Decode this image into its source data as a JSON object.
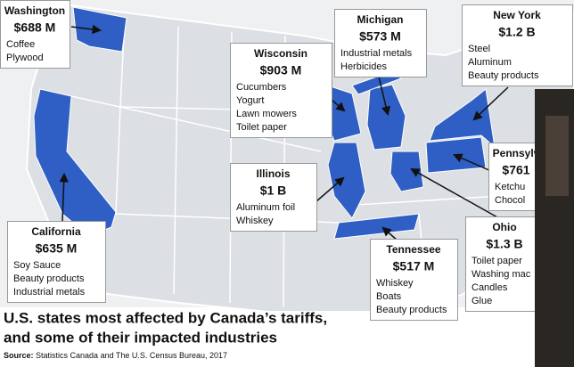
{
  "title_lines": [
    "U.S. states most affected by Canada’s tariffs,",
    "and some of their impacted industries"
  ],
  "source_label": "Source:",
  "source": "Statistics Canada and The U.S. Census Bureau, 2017",
  "callouts": [
    {
      "state": "Washington",
      "amount": "$688 M",
      "items": [
        "Coffee",
        "Plywood"
      ]
    },
    {
      "state": "Michigan",
      "amount": "$573 M",
      "items": [
        "Industrial metals",
        "Herbicides"
      ]
    },
    {
      "state": "New York",
      "amount": "$1.2 B",
      "items": [
        "Steel",
        "Aluminum",
        "Beauty products"
      ]
    },
    {
      "state": "Wisconsin",
      "amount": "$903 M",
      "items": [
        "Cucumbers",
        "Yogurt",
        "Lawn mowers",
        "Toilet paper"
      ]
    },
    {
      "state": "Illinois",
      "amount": "$1 B",
      "items": [
        "Aluminum foil",
        "Whiskey"
      ]
    },
    {
      "state": "California",
      "amount": "$635 M",
      "items": [
        "Soy Sauce",
        "Beauty products",
        "Industrial metals"
      ]
    },
    {
      "state": "Tennessee",
      "amount": "$517 M",
      "items": [
        "Whiskey",
        "Boats",
        "Beauty products"
      ]
    },
    {
      "state": "Ohio",
      "amount": "$1.3 B",
      "items": [
        "Toilet paper",
        "Washing mac",
        "Candles",
        "Glue"
      ]
    },
    {
      "state": "Pennsylv",
      "amount": "$761",
      "items": [
        "Ketchu",
        "Chocol"
      ]
    }
  ]
}
